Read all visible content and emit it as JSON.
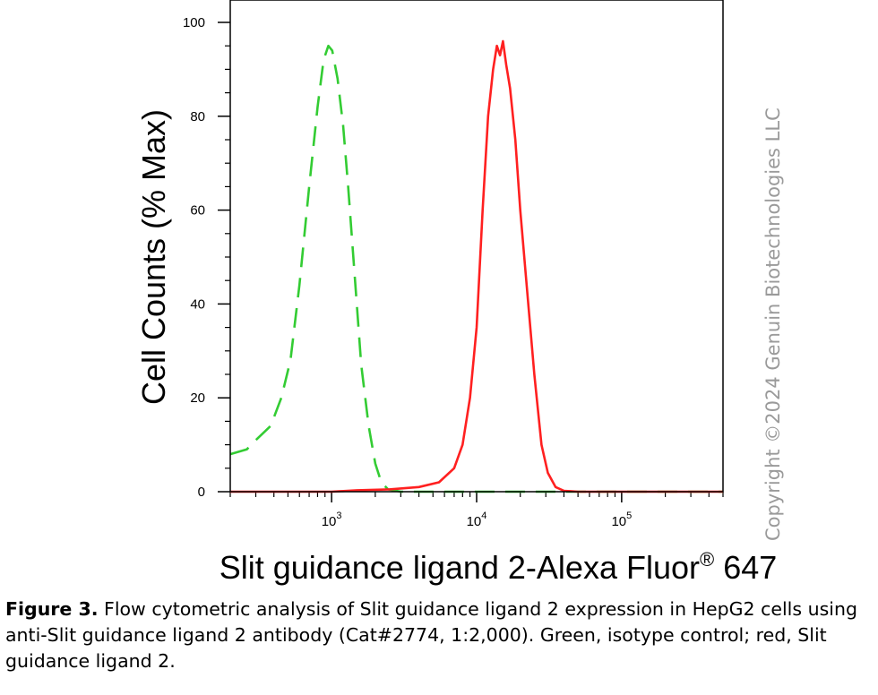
{
  "chart_data": {
    "type": "line",
    "xlabel": "Slit guidance ligand 2-Alexa Fluor",
    "xlabel_superscript": "®",
    "xlabel_suffix": " 647",
    "ylabel": "Cell Counts (% Max)",
    "x_scale": "log",
    "xlim": [
      200,
      500000
    ],
    "ylim": [
      0,
      100
    ],
    "y_ticks": [
      "0",
      "20",
      "40",
      "60",
      "80",
      "100"
    ],
    "x_ticks": [
      {
        "base": "10",
        "exp": "3",
        "value": 1000
      },
      {
        "base": "10",
        "exp": "4",
        "value": 10000
      },
      {
        "base": "10",
        "exp": "5",
        "value": 100000
      }
    ],
    "grid": false,
    "series": [
      {
        "color": "#33cc33",
        "style": "dashed",
        "points": [
          [
            200,
            8
          ],
          [
            260,
            9
          ],
          [
            300,
            11
          ],
          [
            380,
            14
          ],
          [
            450,
            20
          ],
          [
            520,
            28
          ],
          [
            600,
            44
          ],
          [
            700,
            65
          ],
          [
            800,
            82
          ],
          [
            880,
            92
          ],
          [
            950,
            95
          ],
          [
            1010,
            94
          ],
          [
            1100,
            88
          ],
          [
            1200,
            78
          ],
          [
            1300,
            65
          ],
          [
            1450,
            45
          ],
          [
            1600,
            27
          ],
          [
            1800,
            14
          ],
          [
            2000,
            6
          ],
          [
            2200,
            2
          ],
          [
            2450,
            0.5
          ],
          [
            3000,
            0
          ],
          [
            10000,
            0
          ],
          [
            100000,
            0
          ],
          [
            500000,
            0
          ]
        ]
      },
      {
        "color": "#ff2020",
        "style": "solid",
        "points": [
          [
            200,
            0
          ],
          [
            1000,
            0
          ],
          [
            1500,
            0.3
          ],
          [
            2500,
            0.5
          ],
          [
            4000,
            1
          ],
          [
            5500,
            2
          ],
          [
            7000,
            5
          ],
          [
            8000,
            10
          ],
          [
            9000,
            20
          ],
          [
            10000,
            35
          ],
          [
            11000,
            60
          ],
          [
            12000,
            80
          ],
          [
            13000,
            90
          ],
          [
            13800,
            95
          ],
          [
            14500,
            93
          ],
          [
            15200,
            96
          ],
          [
            16000,
            91
          ],
          [
            17000,
            86
          ],
          [
            18500,
            75
          ],
          [
            20000,
            60
          ],
          [
            22000,
            45
          ],
          [
            25000,
            25
          ],
          [
            28000,
            10
          ],
          [
            31000,
            4
          ],
          [
            35000,
            1
          ],
          [
            40000,
            0.2
          ],
          [
            50000,
            0
          ],
          [
            500000,
            0
          ]
        ]
      }
    ]
  },
  "watermark": "Copyright ©2024 Genuin Biotechnologies LLC",
  "caption": {
    "label": "Figure 3.",
    "text": " Flow cytometric analysis of Slit guidance ligand 2 expression in HepG2 cells using anti-Slit guidance ligand 2 antibody (Cat#2774, 1:2,000). Green, isotype control; red, Slit guidance ligand 2."
  }
}
